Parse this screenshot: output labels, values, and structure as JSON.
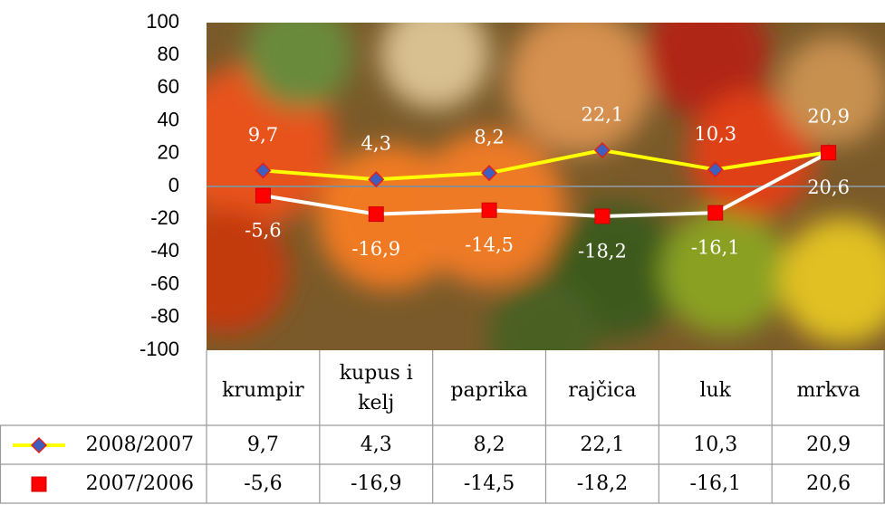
{
  "chart_data": {
    "type": "line",
    "categories": [
      "krumpir",
      "kupus i kelj",
      "paprika",
      "rajčica",
      "luk",
      "mrkva"
    ],
    "series": [
      {
        "name": "2008/2007",
        "color": "#ffff00",
        "marker_color": "#3f5fbf",
        "marker_edge": "#e02020",
        "marker": "diamond",
        "values": [
          9.7,
          4.3,
          8.2,
          22.1,
          10.3,
          20.9
        ],
        "value_labels": [
          "9,7",
          "4,3",
          "8,2",
          "22,1",
          "10,3",
          "20,9"
        ]
      },
      {
        "name": "2007/2006",
        "color": "#ffffff",
        "marker_color": "#ff0000",
        "marker_edge": "#cc0000",
        "marker": "square",
        "values": [
          -5.6,
          -16.9,
          -14.5,
          -18.2,
          -16.1,
          20.6
        ],
        "value_labels": [
          "-5,6",
          "-16,9",
          "-14,5",
          "-18,2",
          "-16,1",
          "20,6"
        ]
      }
    ],
    "ylim": [
      -100,
      100
    ],
    "yticks": [
      -100,
      -80,
      -60,
      -40,
      -20,
      0,
      20,
      40,
      60,
      80,
      100
    ]
  }
}
